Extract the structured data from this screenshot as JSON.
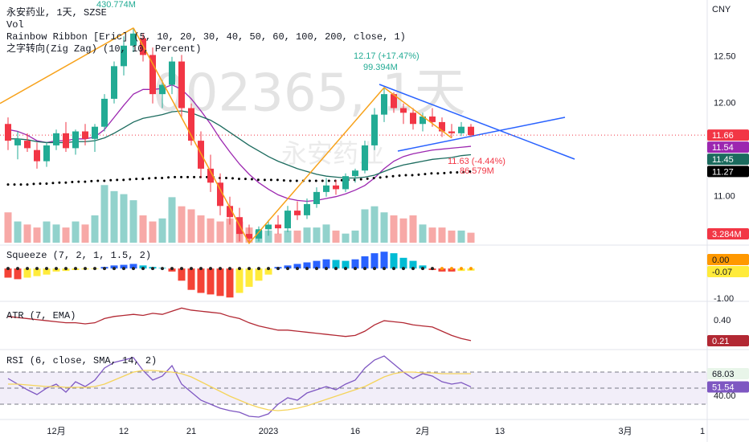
{
  "chart_data": {
    "type": "candlestick",
    "title": "永安药业, 1天, SZSE",
    "legend_lines": [
      "Vol",
      "Rainbow Ribbon [Eric] (5, 10, 20, 30, 40, 50, 60, 100, 200, close, 1)",
      "之字转向(Zig Zag) (10, 10, Percent)"
    ],
    "watermark": "002365, 1天",
    "watermark_name": "永安药业",
    "currency": "CNY",
    "categories": [
      null,
      null,
      null,
      null,
      null,
      "12月",
      null,
      null,
      null,
      null,
      null,
      null,
      "12",
      null,
      null,
      null,
      null,
      null,
      null,
      "21",
      null,
      null,
      null,
      null,
      null,
      null,
      null,
      "2023",
      null,
      null,
      null,
      null,
      null,
      null,
      null,
      null,
      "16",
      null,
      null,
      null,
      null,
      null,
      null,
      "2月",
      null,
      null,
      null,
      null,
      null
    ],
    "future_categories": [
      null,
      null,
      "13",
      null,
      null,
      null,
      null,
      null,
      null,
      null,
      null,
      null,
      null,
      null,
      null,
      "3月",
      null,
      null,
      null,
      null,
      null,
      null,
      null,
      "1"
    ],
    "open": [
      11.78,
      11.55,
      11.6,
      11.5,
      11.38,
      11.55,
      11.68,
      11.52,
      11.7,
      11.62,
      11.75,
      12.05,
      12.4,
      12.62,
      12.7,
      12.52,
      12.1,
      12.2,
      12.45,
      11.95,
      11.6,
      11.3,
      11.15,
      10.9,
      10.78,
      10.6,
      10.55,
      10.65,
      10.7,
      10.66,
      10.85,
      10.8,
      10.92,
      11.05,
      11.12,
      11.08,
      11.22,
      11.28,
      11.55,
      11.88,
      12.1,
      11.95,
      11.9,
      11.78,
      11.86,
      11.8,
      11.7,
      11.68,
      11.75
    ],
    "high": [
      11.85,
      11.7,
      11.68,
      11.58,
      11.58,
      11.72,
      11.8,
      11.72,
      11.78,
      11.78,
      12.1,
      12.45,
      12.72,
      12.81,
      12.75,
      12.6,
      12.25,
      12.5,
      12.52,
      12.0,
      11.7,
      11.45,
      11.25,
      11.0,
      10.88,
      10.7,
      10.68,
      10.75,
      10.8,
      10.9,
      10.95,
      10.98,
      11.1,
      11.2,
      11.18,
      11.25,
      11.3,
      11.6,
      11.95,
      12.17,
      12.12,
      12.0,
      11.95,
      11.9,
      11.95,
      11.85,
      11.78,
      11.8,
      11.78
    ],
    "low": [
      11.5,
      11.4,
      11.48,
      11.3,
      11.32,
      11.5,
      11.48,
      11.45,
      11.55,
      11.48,
      11.7,
      12.0,
      12.3,
      12.55,
      12.45,
      12.0,
      11.95,
      12.1,
      11.85,
      11.55,
      11.2,
      11.05,
      10.8,
      10.7,
      10.52,
      10.5,
      10.52,
      10.58,
      10.6,
      10.62,
      10.75,
      10.76,
      10.88,
      11.0,
      11.02,
      11.05,
      11.15,
      11.25,
      11.5,
      11.8,
      11.9,
      11.78,
      11.72,
      11.7,
      11.75,
      11.64,
      11.63,
      11.65,
      11.64
    ],
    "close": [
      11.6,
      11.62,
      11.52,
      11.38,
      11.55,
      11.68,
      11.52,
      11.7,
      11.62,
      11.75,
      12.05,
      12.4,
      12.62,
      12.75,
      12.52,
      12.1,
      12.2,
      12.45,
      11.95,
      11.6,
      11.3,
      11.15,
      10.9,
      10.78,
      10.6,
      10.55,
      10.65,
      10.7,
      10.66,
      10.85,
      10.8,
      10.92,
      11.05,
      11.12,
      11.08,
      11.22,
      11.28,
      11.55,
      11.88,
      12.1,
      11.95,
      11.9,
      11.78,
      11.86,
      11.8,
      11.7,
      11.68,
      11.75,
      11.66
    ],
    "up_color": "#22ab94",
    "down_color": "#f23645",
    "ylim": [
      10.48,
      13.11
    ],
    "yticks": [
      {
        "value": 12.5,
        "label": "12.50"
      },
      {
        "value": 12,
        "label": "12.00"
      },
      {
        "value": 11,
        "label": "11.00"
      }
    ],
    "ribbons": [
      {
        "color": "#9c27b0",
        "values": [
          11.72,
          11.7,
          11.66,
          11.6,
          11.58,
          11.6,
          11.6,
          11.62,
          11.62,
          11.64,
          11.72,
          11.85,
          11.98,
          12.1,
          12.15,
          12.15,
          12.16,
          12.2,
          12.15,
          12.05,
          11.92,
          11.78,
          11.62,
          11.48,
          11.35,
          11.24,
          11.15,
          11.08,
          11.02,
          10.98,
          10.96,
          10.95,
          10.96,
          10.98,
          11.0,
          11.03,
          11.07,
          11.12,
          11.2,
          11.3,
          11.38,
          11.43,
          11.46,
          11.48,
          11.5,
          11.51,
          11.52,
          11.53,
          11.54
        ]
      },
      {
        "color": "#1b6b5e",
        "values": [
          11.62,
          11.62,
          11.61,
          11.59,
          11.58,
          11.58,
          11.58,
          11.59,
          11.59,
          11.6,
          11.63,
          11.68,
          11.74,
          11.8,
          11.84,
          11.86,
          11.88,
          11.91,
          11.92,
          11.9,
          11.86,
          11.82,
          11.76,
          11.69,
          11.62,
          11.55,
          11.49,
          11.43,
          11.38,
          11.34,
          11.3,
          11.27,
          11.24,
          11.22,
          11.21,
          11.2,
          11.2,
          11.21,
          11.23,
          11.27,
          11.31,
          11.34,
          11.36,
          11.38,
          11.4,
          11.41,
          11.42,
          11.44,
          11.45
        ]
      },
      {
        "color": "#000000",
        "dotted": true,
        "values": [
          11.13,
          11.13,
          11.13,
          11.14,
          11.14,
          11.15,
          11.15,
          11.16,
          11.16,
          11.17,
          11.17,
          11.18,
          11.18,
          11.19,
          11.19,
          11.2,
          11.2,
          11.21,
          11.21,
          11.21,
          11.21,
          11.21,
          11.2,
          11.2,
          11.19,
          11.19,
          11.18,
          11.18,
          11.18,
          11.17,
          11.17,
          11.17,
          11.17,
          11.17,
          11.17,
          11.18,
          11.18,
          11.19,
          11.2,
          11.21,
          11.22,
          11.23,
          11.23,
          11.24,
          11.25,
          11.25,
          11.26,
          11.26,
          11.27
        ]
      }
    ],
    "zigzag_color": "#f7a21b",
    "volume": {
      "values": [
        10,
        7,
        6,
        5,
        7,
        6,
        5,
        7,
        6,
        9,
        19,
        17,
        16,
        14,
        9,
        7,
        8,
        15,
        12,
        11,
        9,
        8,
        7,
        8,
        7,
        5,
        4,
        4,
        3,
        4,
        4,
        5,
        5,
        6,
        4,
        3,
        4,
        11,
        12,
        10,
        9,
        8,
        9,
        6,
        5,
        5,
        4,
        4,
        3.284
      ],
      "ylim": [
        0,
        80
      ],
      "up_color": "#92d2cc",
      "down_color": "#f7a9a7",
      "badge": {
        "value": 3.284,
        "label": "3.284M"
      }
    },
    "annotations": [
      {
        "text": "430.774M",
        "color": "#22ab94"
      },
      {
        "text": "12.17 (+17.47%)",
        "color": "#22ab94"
      },
      {
        "text": "99.394M",
        "color": "#22ab94"
      },
      {
        "text": "11.63 (-4.44%)",
        "color": "#f23645"
      },
      {
        "text": "86.579M",
        "color": "#f23645"
      }
    ],
    "squeeze": {
      "title": "Squeeze (7, 2, 1, 1.5, 2)",
      "values": [
        -0.3,
        -0.35,
        -0.3,
        -0.25,
        -0.2,
        -0.1,
        -0.08,
        -0.05,
        -0.03,
        -0.02,
        0.05,
        0.1,
        0.12,
        0.15,
        0.1,
        0.05,
        0.02,
        -0.1,
        -0.4,
        -0.7,
        -0.8,
        -0.85,
        -0.9,
        -0.95,
        -0.8,
        -0.6,
        -0.4,
        -0.2,
        0.05,
        0.1,
        0.15,
        0.2,
        0.25,
        0.3,
        0.28,
        0.25,
        0.3,
        0.4,
        0.5,
        0.55,
        0.5,
        0.35,
        0.25,
        0.1,
        -0.05,
        -0.1,
        -0.1,
        -0.08,
        -0.07
      ],
      "ylim": [
        -1.05,
        0.74
      ],
      "yticks": [
        {
          "value": -1,
          "label": "-1.00"
        }
      ],
      "zero_badge": {
        "value": 0,
        "label": "0.00"
      },
      "colors": {
        "pos_up": "#2962ff",
        "pos_down": "#00bcd4",
        "neg_down": "#f44336",
        "neg_up": "#ffeb3b"
      }
    },
    "atr": {
      "title": "ATR (7, EMA)",
      "color": "#b22833",
      "values": [
        0.44,
        0.43,
        0.42,
        0.41,
        0.4,
        0.39,
        0.38,
        0.38,
        0.37,
        0.38,
        0.42,
        0.44,
        0.45,
        0.46,
        0.45,
        0.47,
        0.46,
        0.49,
        0.52,
        0.5,
        0.49,
        0.48,
        0.47,
        0.44,
        0.42,
        0.38,
        0.35,
        0.33,
        0.31,
        0.31,
        0.3,
        0.29,
        0.28,
        0.27,
        0.26,
        0.25,
        0.26,
        0.3,
        0.36,
        0.4,
        0.39,
        0.38,
        0.36,
        0.35,
        0.34,
        0.3,
        0.26,
        0.23,
        0.21
      ],
      "ylim": [
        0.133,
        0.576
      ],
      "yticks": [
        {
          "value": 0.4,
          "label": "0.40"
        }
      ]
    },
    "rsi": {
      "title": "RSI (6, close, SMA, 14, 2)",
      "series": [
        {
          "color": "#7e57c2",
          "values": [
            62,
            55,
            48,
            42,
            50,
            55,
            45,
            58,
            52,
            60,
            75,
            82,
            85,
            88,
            72,
            60,
            65,
            78,
            55,
            45,
            35,
            30,
            25,
            22,
            20,
            15,
            14,
            18,
            30,
            38,
            35,
            44,
            48,
            52,
            48,
            55,
            60,
            75,
            85,
            90,
            80,
            70,
            62,
            68,
            65,
            58,
            55,
            57,
            51.54
          ]
        },
        {
          "color": "#f5d45b",
          "values": [
            55,
            55,
            54,
            53,
            52,
            52,
            51,
            51,
            51,
            52,
            55,
            60,
            65,
            70,
            72,
            72,
            71,
            70,
            68,
            64,
            58,
            52,
            46,
            40,
            35,
            30,
            26,
            23,
            22,
            23,
            25,
            28,
            32,
            36,
            40,
            44,
            48,
            52,
            58,
            64,
            68,
            70,
            70,
            69,
            69,
            68,
            68,
            68,
            68.03
          ]
        }
      ],
      "badge_colors": [
        "#7e57c2",
        "#e8f5e9"
      ],
      "ylim": [
        11,
        97
      ],
      "yticks": [
        {
          "value": 40,
          "label": "40.00"
        }
      ],
      "bands": [
        30,
        50,
        70
      ]
    }
  }
}
